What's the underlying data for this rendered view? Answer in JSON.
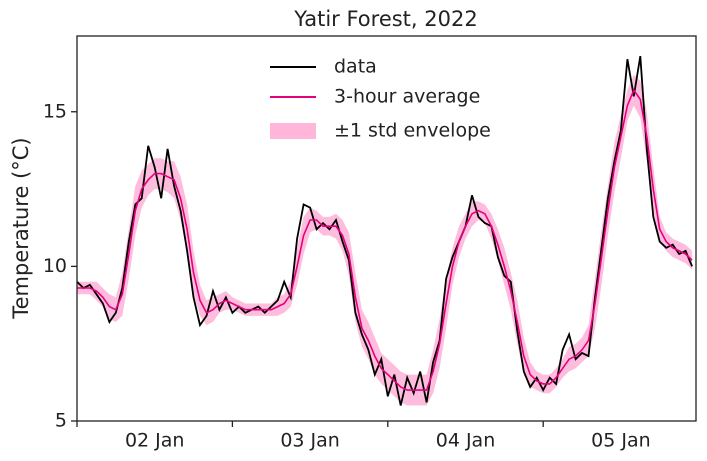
{
  "chart_data": {
    "type": "line",
    "title": "Yatir Forest, 2022",
    "y_label": "Temperature (°C)",
    "x": [
      0,
      1,
      2,
      3,
      4,
      5,
      6,
      7,
      8,
      9,
      10,
      11,
      12,
      13,
      14,
      15,
      16,
      17,
      18,
      19,
      20,
      21,
      22,
      23,
      24,
      25,
      26,
      27,
      28,
      29,
      30,
      31,
      32,
      33,
      34,
      35,
      36,
      37,
      38,
      39,
      40,
      41,
      42,
      43,
      44,
      45,
      46,
      47,
      48,
      49,
      50,
      51,
      52,
      53,
      54,
      55,
      56,
      57,
      58,
      59,
      60,
      61,
      62,
      63,
      64,
      65,
      66,
      67,
      68,
      69,
      70,
      71,
      72,
      73,
      74,
      75,
      76,
      77,
      78,
      79,
      80,
      81,
      82,
      83,
      84,
      85,
      86,
      87,
      88,
      89,
      90,
      91,
      92,
      93,
      94,
      95
    ],
    "xlim": [
      0,
      95.6
    ],
    "xtick_marks": [
      0,
      24,
      48,
      72
    ],
    "xticks": [
      {
        "value": 12,
        "label": "02 Jan"
      },
      {
        "value": 36,
        "label": "03 Jan"
      },
      {
        "value": 60,
        "label": "04 Jan"
      },
      {
        "value": 84,
        "label": "05 Jan"
      }
    ],
    "ylim": [
      5,
      17.45
    ],
    "yticks": [
      5,
      10,
      15
    ],
    "series": [
      {
        "name": "data",
        "color": "#000000",
        "values": [
          9.5,
          9.3,
          9.4,
          9.1,
          8.8,
          8.2,
          8.5,
          9.3,
          10.8,
          12.0,
          12.2,
          13.9,
          13.2,
          12.2,
          13.8,
          12.6,
          11.8,
          10.5,
          9.0,
          8.1,
          8.4,
          9.2,
          8.6,
          9.0,
          8.5,
          8.7,
          8.5,
          8.6,
          8.7,
          8.5,
          8.7,
          8.9,
          9.5,
          9.0,
          10.9,
          12.0,
          11.9,
          11.2,
          11.4,
          11.2,
          11.5,
          10.8,
          10.2,
          8.5,
          7.8,
          7.3,
          6.5,
          7.0,
          5.8,
          6.5,
          5.5,
          6.4,
          5.9,
          6.6,
          5.6,
          6.9,
          7.6,
          9.6,
          10.3,
          10.8,
          11.3,
          12.3,
          11.6,
          11.4,
          11.3,
          10.3,
          9.7,
          9.5,
          7.9,
          6.6,
          6.1,
          6.4,
          6.0,
          6.4,
          6.2,
          7.3,
          7.8,
          7.0,
          7.2,
          7.1,
          9.0,
          10.6,
          12.2,
          13.4,
          14.4,
          16.7,
          15.5,
          16.8,
          13.8,
          11.6,
          10.8,
          10.6,
          10.7,
          10.4,
          10.5,
          10.0
        ]
      },
      {
        "name": "3-hour average",
        "color": "#e6007e",
        "values": [
          9.3,
          9.3,
          9.3,
          9.2,
          9.0,
          8.7,
          8.6,
          9.1,
          10.4,
          11.8,
          12.5,
          12.8,
          13.0,
          13.0,
          12.9,
          12.8,
          12.2,
          11.2,
          9.8,
          8.9,
          8.5,
          8.6,
          8.8,
          8.9,
          8.8,
          8.7,
          8.6,
          8.6,
          8.6,
          8.6,
          8.6,
          8.7,
          8.8,
          9.1,
          10.0,
          11.0,
          11.5,
          11.5,
          11.3,
          11.3,
          11.3,
          11.0,
          10.4,
          9.0,
          8.0,
          7.6,
          7.1,
          6.7,
          6.5,
          6.3,
          6.1,
          6.0,
          6.0,
          6.0,
          6.0,
          6.6,
          7.5,
          8.8,
          10.0,
          10.8,
          11.3,
          11.7,
          11.8,
          11.7,
          11.3,
          10.7,
          10.0,
          9.2,
          8.2,
          7.1,
          6.5,
          6.3,
          6.2,
          6.2,
          6.4,
          6.7,
          7.0,
          7.1,
          7.3,
          7.6,
          8.8,
          10.3,
          11.8,
          13.2,
          14.2,
          15.2,
          15.7,
          15.4,
          14.2,
          12.5,
          11.2,
          10.8,
          10.6,
          10.5,
          10.4,
          10.2
        ]
      }
    ],
    "envelope": {
      "name": "±1 std envelope",
      "color": "#ffb6d9",
      "std": [
        0.2,
        0.2,
        0.2,
        0.3,
        0.3,
        0.4,
        0.4,
        0.7,
        0.8,
        0.8,
        0.6,
        0.5,
        0.5,
        0.5,
        0.5,
        0.6,
        0.7,
        0.8,
        0.7,
        0.5,
        0.4,
        0.4,
        0.3,
        0.3,
        0.2,
        0.2,
        0.2,
        0.2,
        0.2,
        0.2,
        0.2,
        0.3,
        0.3,
        0.4,
        0.6,
        0.6,
        0.4,
        0.3,
        0.3,
        0.3,
        0.4,
        0.5,
        0.7,
        0.8,
        0.6,
        0.6,
        0.6,
        0.5,
        0.5,
        0.5,
        0.5,
        0.5,
        0.5,
        0.5,
        0.5,
        0.7,
        0.8,
        0.8,
        0.6,
        0.5,
        0.4,
        0.4,
        0.3,
        0.3,
        0.4,
        0.5,
        0.6,
        0.6,
        0.7,
        0.6,
        0.4,
        0.3,
        0.3,
        0.3,
        0.3,
        0.3,
        0.4,
        0.4,
        0.4,
        0.5,
        0.8,
        0.9,
        0.8,
        0.8,
        0.7,
        0.5,
        0.5,
        0.6,
        0.8,
        0.7,
        0.4,
        0.3,
        0.3,
        0.3,
        0.3,
        0.3
      ]
    }
  }
}
